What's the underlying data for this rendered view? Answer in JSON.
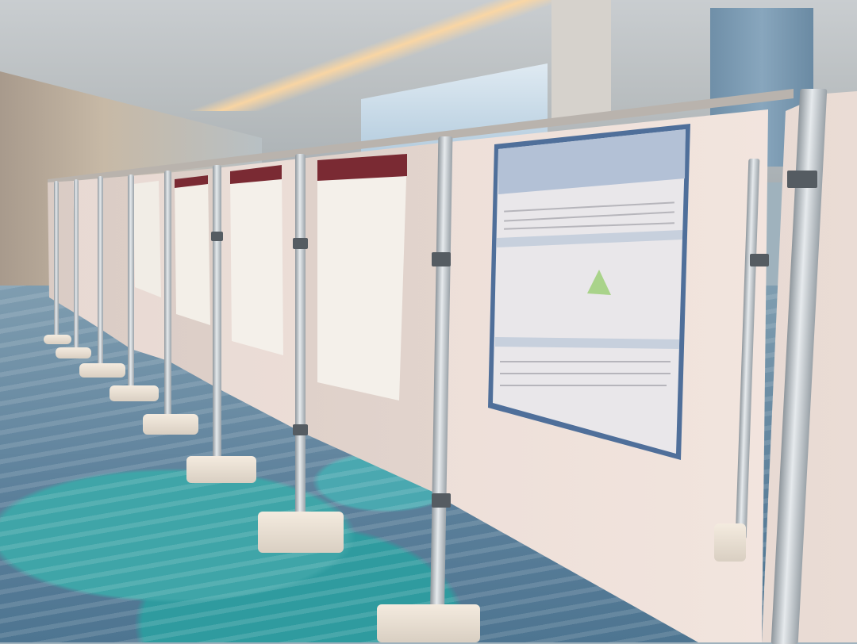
{
  "scene": {
    "description_type": "photo",
    "colors": {
      "board": "#efe2dc",
      "pole": "#c8ced2",
      "carpet_teal": "#3fa5a8",
      "carpet_blue": "#5b7f9a",
      "poster_frame_blue": "#4f6f9a",
      "poster_header_maroon": "#7a2a33",
      "ceiling_light": "#ffd7a0"
    }
  }
}
